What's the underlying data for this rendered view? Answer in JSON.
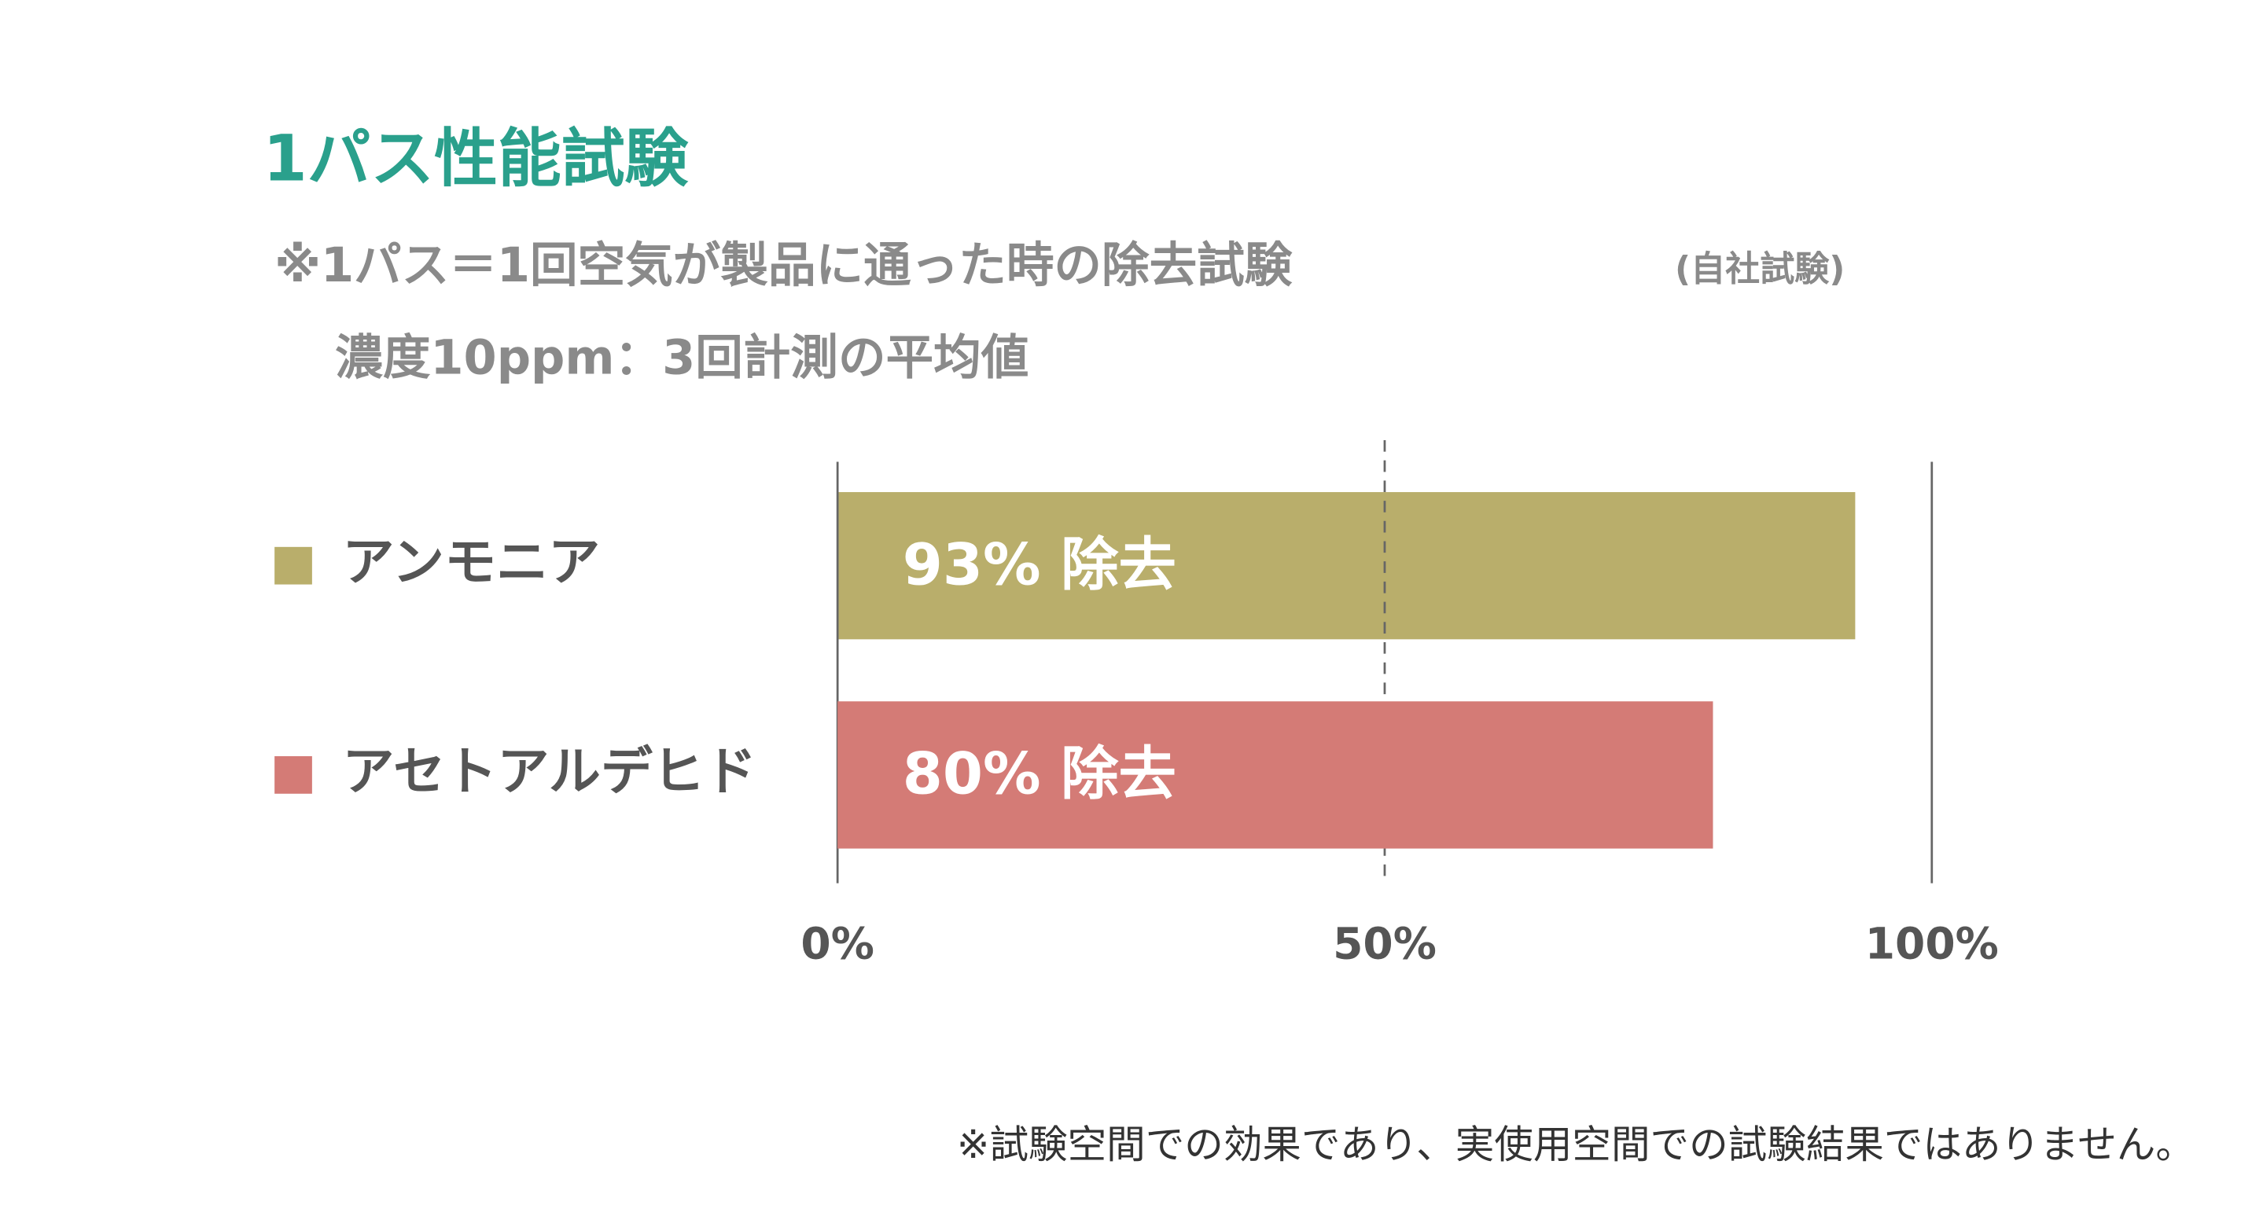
{
  "chart_data": {
    "type": "bar",
    "orientation": "horizontal",
    "title": "1パス性能試験",
    "subtitle": [
      "※1パス＝1回空気が製品に通った時の除去試験",
      "濃度10ppm：3回計測の平均値"
    ],
    "subtitle_note": "(自社試験)",
    "categories": [
      "アンモニア",
      "アセトアルデヒド"
    ],
    "values": [
      93,
      80
    ],
    "value_labels": [
      "93% 除去",
      "80% 除去"
    ],
    "colors": [
      "#b9ae6b",
      "#d47b76"
    ],
    "xlim": [
      0,
      100
    ],
    "xticks": [
      {
        "value": 0,
        "label": "0%"
      },
      {
        "value": 50,
        "label": "50%"
      },
      {
        "value": 100,
        "label": "100%"
      }
    ],
    "footnote": "※試験空間での効果であり、実使用空間での試験結果ではありません。"
  }
}
